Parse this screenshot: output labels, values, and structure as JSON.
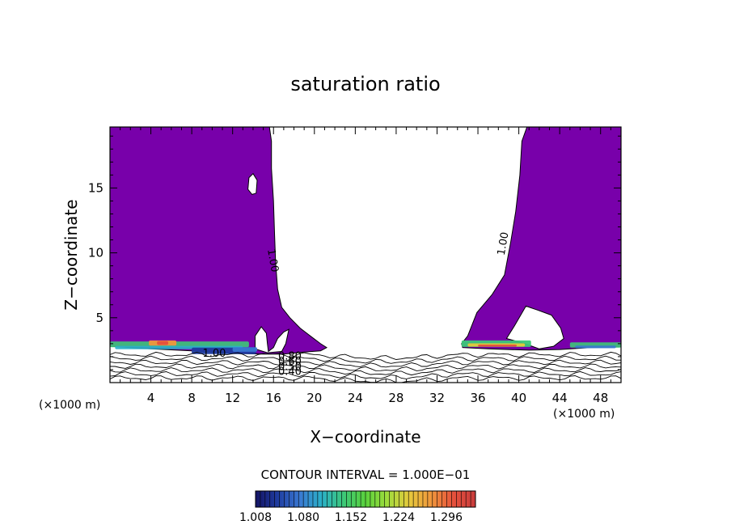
{
  "chart_data": {
    "type": "contour",
    "title": "saturation ratio",
    "xlabel": "X−coordinate",
    "ylabel": "Z−coordinate",
    "x_unit_label": "(×1000 m)",
    "xlim": [
      0,
      50
    ],
    "ylim": [
      0,
      19.7
    ],
    "x_ticks": [
      4,
      8,
      12,
      16,
      20,
      24,
      28,
      32,
      36,
      40,
      44,
      48
    ],
    "y_ticks": [
      5,
      10,
      15
    ],
    "contour_interval_text": "CONTOUR INTERVAL = 1.000E−01",
    "contour_labels": [
      {
        "text": "1.00",
        "x": 15.9,
        "z": 9.4,
        "rotate": 80
      },
      {
        "text": "1.00",
        "x": 38.5,
        "z": 10.7,
        "rotate": -80
      },
      {
        "text": "1.00",
        "x": 10.2,
        "z": 2.2,
        "rotate": 0
      },
      {
        "text": "0.80",
        "x": 17.6,
        "z": 2.0,
        "rotate": 0
      },
      {
        "text": "0.60",
        "x": 17.6,
        "z": 1.6,
        "rotate": 0
      },
      {
        "text": "0.50",
        "x": 17.6,
        "z": 1.2,
        "rotate": 0
      },
      {
        "text": "0.40",
        "x": 17.6,
        "z": 0.8,
        "rotate": 0
      }
    ],
    "colorbar": {
      "ticks": [
        "1.008",
        "1.080",
        "1.152",
        "1.224",
        "1.296"
      ],
      "min": 1.008,
      "max": 1.34,
      "colors": [
        "#141464",
        "#1f3ca0",
        "#3a78d2",
        "#2bb0c8",
        "#3cc878",
        "#5ad23c",
        "#a0dc3c",
        "#e6c83c",
        "#f0963c",
        "#e6503c",
        "#c83c3c"
      ]
    },
    "fill_color": "#7800aa"
  }
}
